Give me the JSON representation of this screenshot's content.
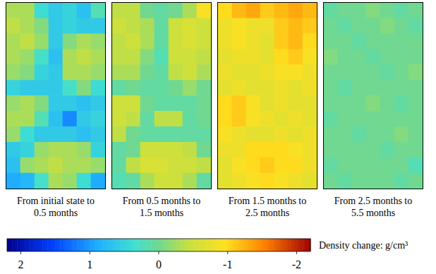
{
  "chart_data": [
    {
      "type": "heatmap",
      "title": "From initial state to 0.5 months",
      "tick_labels": false,
      "cells": [
        [
          -0.3,
          -0.3,
          0.4,
          0.6,
          0.5,
          0.7,
          0.2
        ],
        [
          -0.4,
          -0.3,
          -0.1,
          0.6,
          0.5,
          0.6,
          0.6
        ],
        [
          -0.3,
          -0.4,
          -0.2,
          0.6,
          -0.1,
          -0.3,
          -0.2
        ],
        [
          -0.3,
          -0.2,
          0.3,
          0.7,
          -0.3,
          -0.4,
          -0.3
        ],
        [
          -0.2,
          -0.1,
          0.5,
          0.6,
          -0.3,
          -0.3,
          -0.2
        ],
        [
          0.5,
          0.6,
          0.6,
          0.6,
          0.3,
          -0.1,
          0.4
        ],
        [
          -0.2,
          -0.3,
          -0.1,
          0.6,
          0.6,
          0.7,
          0.6
        ],
        [
          -0.3,
          -0.3,
          0.2,
          0.7,
          1.1,
          0.6,
          0.5
        ],
        [
          -0.2,
          0.4,
          0.6,
          0.6,
          0.6,
          0.7,
          0.6
        ],
        [
          0.6,
          0.5,
          -0.2,
          -0.3,
          -0.3,
          -0.2,
          0.5
        ],
        [
          0.7,
          -0.2,
          -0.3,
          -0.4,
          -0.3,
          -0.3,
          -0.2
        ],
        [
          0.9,
          0.8,
          0.3,
          -0.3,
          -0.2,
          0.4,
          0.9
        ]
      ]
    },
    {
      "type": "heatmap",
      "title": "From 0.5 months to 1.5 months",
      "tick_labels": false,
      "cells": [
        [
          -0.4,
          -0.4,
          0.0,
          0.1,
          0.0,
          -0.3,
          -0.9
        ],
        [
          -0.5,
          -0.4,
          -0.3,
          0.1,
          -0.5,
          -0.6,
          -0.5
        ],
        [
          -0.4,
          -0.5,
          -0.3,
          0.1,
          -0.5,
          -0.6,
          -0.5
        ],
        [
          -0.4,
          -0.4,
          -0.1,
          0.2,
          -0.5,
          -0.5,
          -0.4
        ],
        [
          -0.3,
          -0.3,
          0.0,
          0.1,
          -0.4,
          -0.5,
          -0.3
        ],
        [
          0.1,
          0.0,
          0.1,
          0.1,
          0.0,
          -0.2,
          0.0
        ],
        [
          -0.5,
          -0.5,
          0.0,
          0.1,
          0.1,
          0.1,
          0.0
        ],
        [
          -0.5,
          -0.4,
          0.1,
          -0.4,
          -0.4,
          0.1,
          0.0
        ],
        [
          -0.4,
          0.0,
          0.1,
          0.1,
          0.1,
          0.1,
          0.1
        ],
        [
          0.1,
          0.0,
          -0.5,
          -0.5,
          -0.5,
          -0.4,
          0.0
        ],
        [
          0.1,
          -0.4,
          -0.6,
          -0.6,
          -0.5,
          -0.5,
          -0.4
        ],
        [
          0.2,
          0.1,
          -0.3,
          -0.5,
          -0.5,
          -0.3,
          0.1
        ]
      ]
    },
    {
      "type": "heatmap",
      "title": "From 1.5 months to 2.5 months",
      "tick_labels": false,
      "cells": [
        [
          -1.0,
          -1.2,
          -1.3,
          -1.1,
          -1.2,
          -1.3,
          -1.2
        ],
        [
          -0.8,
          -0.9,
          -0.8,
          -0.8,
          -1.1,
          -1.2,
          -1.1
        ],
        [
          -0.8,
          -0.9,
          -0.8,
          -0.7,
          -1.1,
          -1.2,
          -1.0
        ],
        [
          -0.7,
          -0.8,
          -0.8,
          -0.7,
          -1.0,
          -1.1,
          -0.9
        ],
        [
          -0.8,
          -0.7,
          -0.7,
          -0.8,
          -0.9,
          -0.9,
          -0.8
        ],
        [
          -0.7,
          -0.8,
          -0.7,
          -0.7,
          -0.8,
          -0.7,
          -0.8
        ],
        [
          -1.0,
          -1.1,
          -0.9,
          -0.7,
          -0.8,
          -0.7,
          -0.7
        ],
        [
          -1.0,
          -1.1,
          -0.9,
          -0.8,
          -0.7,
          -0.8,
          -0.7
        ],
        [
          -0.9,
          -0.8,
          -0.7,
          -0.7,
          -0.8,
          -0.7,
          -0.8
        ],
        [
          -0.8,
          -0.8,
          -1.0,
          -1.0,
          -1.0,
          -0.9,
          -0.8
        ],
        [
          -0.7,
          -0.9,
          -1.0,
          -1.1,
          -1.0,
          -1.0,
          -0.8
        ],
        [
          -0.7,
          -0.8,
          -0.9,
          -1.0,
          -0.9,
          -0.8,
          -0.7
        ]
      ]
    },
    {
      "type": "heatmap",
      "title": "From 2.5 months to 5.5 months",
      "tick_labels": false,
      "cells": [
        [
          0.1,
          0.0,
          0.0,
          -0.1,
          0.0,
          0.1,
          0.0
        ],
        [
          0.0,
          0.1,
          0.0,
          0.0,
          -0.1,
          0.0,
          0.1
        ],
        [
          0.0,
          0.0,
          0.1,
          0.0,
          0.0,
          0.0,
          0.0
        ],
        [
          -0.1,
          0.0,
          0.0,
          0.1,
          0.0,
          0.0,
          0.0
        ],
        [
          0.0,
          0.0,
          0.0,
          0.0,
          0.1,
          0.0,
          -0.1
        ],
        [
          0.0,
          0.1,
          0.0,
          0.0,
          0.0,
          0.0,
          0.0
        ],
        [
          0.0,
          0.0,
          0.0,
          -0.1,
          0.0,
          0.1,
          0.0
        ],
        [
          0.1,
          0.0,
          0.0,
          0.0,
          0.0,
          0.0,
          0.0
        ],
        [
          0.0,
          0.0,
          0.1,
          0.0,
          0.0,
          -0.1,
          0.0
        ],
        [
          0.0,
          0.0,
          0.0,
          0.0,
          0.1,
          0.0,
          0.0
        ],
        [
          0.1,
          0.0,
          0.0,
          0.0,
          0.0,
          0.0,
          0.2
        ],
        [
          0.0,
          0.1,
          0.0,
          0.0,
          0.0,
          0.1,
          0.0
        ]
      ]
    }
  ],
  "colorbar": {
    "range": [
      2.2,
      -2.2
    ],
    "ticks": [
      2,
      1,
      0,
      -1,
      -2
    ],
    "label": "Density change: g/cm³"
  }
}
